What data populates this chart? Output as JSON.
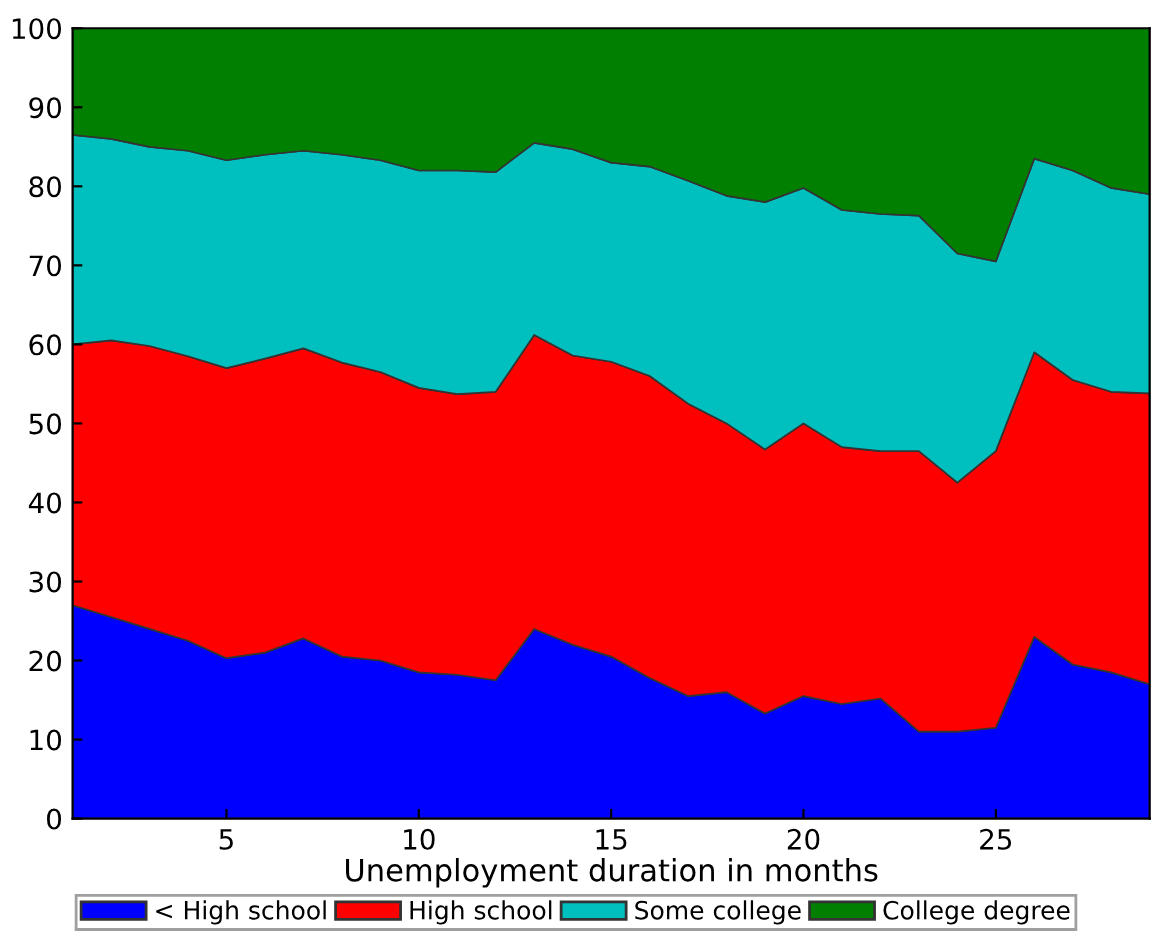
{
  "chart_data": {
    "type": "area",
    "stacked": true,
    "xlabel": "Unemployment duration in months",
    "x": [
      1,
      2,
      3,
      4,
      5,
      6,
      7,
      8,
      9,
      10,
      11,
      12,
      13,
      14,
      15,
      16,
      17,
      18,
      19,
      20,
      21,
      22,
      23,
      24,
      25,
      26,
      27,
      28,
      29
    ],
    "xlim": [
      1,
      29
    ],
    "xticks": [
      5,
      10,
      15,
      20,
      25
    ],
    "ylim": [
      0,
      100
    ],
    "yticks": [
      0,
      10,
      20,
      30,
      40,
      50,
      60,
      70,
      80,
      90,
      100
    ],
    "grid": false,
    "legend": "bottom",
    "series": [
      {
        "name": "< High school",
        "color": "#0000ff",
        "values": [
          27,
          25.5,
          24,
          22.5,
          20.3,
          21,
          22.8,
          20.5,
          20,
          18.5,
          18.2,
          17.5,
          24,
          22,
          20.5,
          17.8,
          15.5,
          16,
          13.3,
          15.5,
          14.5,
          15.2,
          11,
          11,
          11.5,
          23,
          19.5,
          18.5,
          17
        ]
      },
      {
        "name": "High school",
        "color": "#ff0000",
        "values": [
          33,
          35,
          35.8,
          36,
          36.7,
          37.2,
          36.7,
          37.2,
          36.5,
          36,
          35.5,
          36.5,
          37.2,
          36.6,
          37.3,
          38.2,
          37,
          34,
          33.4,
          34.5,
          32.5,
          31.3,
          35.5,
          31.5,
          35,
          36,
          36,
          35.5,
          36.8
        ]
      },
      {
        "name": "Some college",
        "color": "#00bfbf",
        "values": [
          26.5,
          25.5,
          25.2,
          26,
          26.3,
          25.8,
          25,
          26.3,
          26.8,
          27.5,
          28.3,
          27.8,
          24.3,
          26.1,
          25.2,
          26.5,
          28.2,
          28.8,
          31.3,
          29.8,
          30,
          30,
          29.8,
          29,
          24,
          24.5,
          26.5,
          25.8,
          25.2
        ]
      },
      {
        "name": "College degree",
        "color": "#007f00",
        "values": [
          13.5,
          14,
          15,
          15.5,
          16.7,
          16,
          15.5,
          16,
          16.7,
          18,
          18,
          18.2,
          14.5,
          15.3,
          17,
          17.5,
          19.3,
          21.2,
          22,
          20.2,
          23,
          23.5,
          23.7,
          28.5,
          29.5,
          16.5,
          18,
          20.2,
          21
        ]
      }
    ]
  }
}
